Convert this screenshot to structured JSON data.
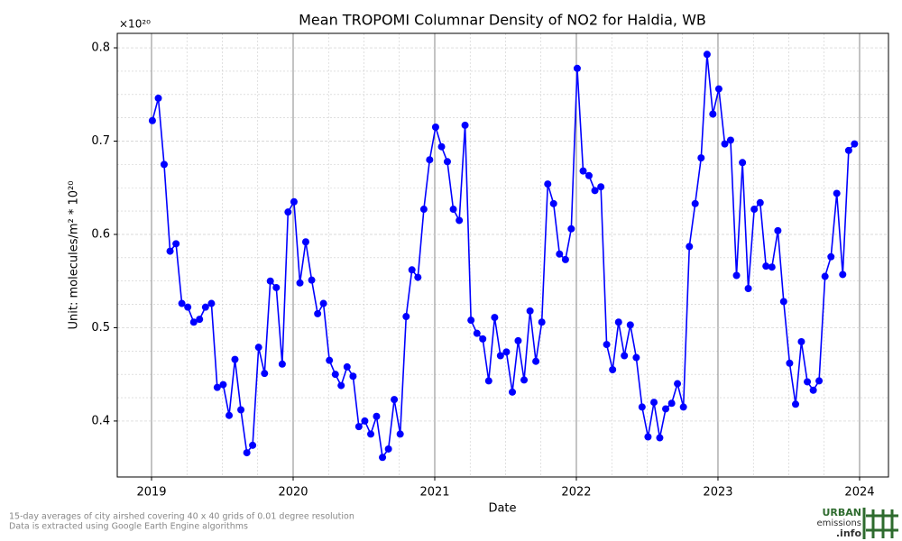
{
  "chart_data": {
    "type": "line",
    "title": "Mean TROPOMI Columnar Density of NO2 for Haldia, WB",
    "offset_label": "×10²⁰",
    "xlabel": "Date",
    "ylabel": "Unit: molecules/m² * 10²⁰",
    "footnote": [
      "15-day averages of city airshed covering 40 x 40 grids of 0.01 degree resolution",
      "Data is extracted using Google Earth Engine algorithms"
    ],
    "logo": [
      "URBAN",
      "emissions",
      ".info"
    ],
    "grid": true,
    "xlim": [
      2018.758,
      2024.204
    ],
    "ylim": [
      0.34,
      0.8155
    ],
    "xticks": [
      2019,
      2020,
      2021,
      2022,
      2023,
      2024
    ],
    "yticks": [
      0.4,
      0.5,
      0.6,
      0.7,
      0.8
    ],
    "x": [
      2019.006,
      2019.048,
      2019.089,
      2019.131,
      2019.173,
      2019.214,
      2019.256,
      2019.298,
      2019.339,
      2019.381,
      2019.423,
      2019.464,
      2019.506,
      2019.548,
      2019.589,
      2019.631,
      2019.673,
      2019.714,
      2019.756,
      2019.798,
      2019.839,
      2019.881,
      2019.923,
      2019.964,
      2020.006,
      2020.048,
      2020.089,
      2020.131,
      2020.173,
      2020.214,
      2020.256,
      2020.298,
      2020.339,
      2020.381,
      2020.423,
      2020.464,
      2020.506,
      2020.548,
      2020.589,
      2020.631,
      2020.673,
      2020.714,
      2020.756,
      2020.798,
      2020.839,
      2020.881,
      2020.923,
      2020.964,
      2021.006,
      2021.048,
      2021.089,
      2021.131,
      2021.173,
      2021.214,
      2021.256,
      2021.298,
      2021.339,
      2021.381,
      2021.423,
      2021.464,
      2021.506,
      2021.548,
      2021.589,
      2021.631,
      2021.673,
      2021.714,
      2021.756,
      2021.798,
      2021.839,
      2021.881,
      2021.923,
      2021.964,
      2022.006,
      2022.048,
      2022.089,
      2022.131,
      2022.173,
      2022.214,
      2022.256,
      2022.298,
      2022.339,
      2022.381,
      2022.423,
      2022.464,
      2022.506,
      2022.548,
      2022.589,
      2022.631,
      2022.673,
      2022.714,
      2022.756,
      2022.798,
      2022.839,
      2022.881,
      2022.923,
      2022.964,
      2023.006,
      2023.048,
      2023.089,
      2023.131,
      2023.173,
      2023.214,
      2023.256,
      2023.298,
      2023.339,
      2023.381,
      2023.423,
      2023.464,
      2023.506,
      2023.548,
      2023.589,
      2023.631,
      2023.673,
      2023.714,
      2023.756,
      2023.798,
      2023.839,
      2023.881,
      2023.923,
      2023.964
    ],
    "series": [
      {
        "color": "#0000ff",
        "values": [
          0.722,
          0.746,
          0.675,
          0.582,
          0.59,
          0.526,
          0.522,
          0.506,
          0.509,
          0.522,
          0.526,
          0.436,
          0.439,
          0.406,
          0.466,
          0.412,
          0.366,
          0.374,
          0.479,
          0.451,
          0.55,
          0.543,
          0.461,
          0.624,
          0.635,
          0.548,
          0.592,
          0.551,
          0.515,
          0.526,
          0.465,
          0.45,
          0.438,
          0.458,
          0.448,
          0.394,
          0.4,
          0.386,
          0.405,
          0.361,
          0.37,
          0.423,
          0.386,
          0.512,
          0.562,
          0.554,
          0.627,
          0.68,
          0.715,
          0.694,
          0.678,
          0.627,
          0.615,
          0.717,
          0.508,
          0.494,
          0.488,
          0.443,
          0.511,
          0.47,
          0.474,
          0.431,
          0.486,
          0.444,
          0.518,
          0.464,
          0.506,
          0.654,
          0.633,
          0.579,
          0.573,
          0.606,
          0.778,
          0.668,
          0.663,
          0.647,
          0.651,
          0.482,
          0.455,
          0.506,
          0.47,
          0.503,
          0.468,
          0.415,
          0.383,
          0.42,
          0.382,
          0.413,
          0.419,
          0.44,
          0.415,
          0.587,
          0.633,
          0.682,
          0.793,
          0.729,
          0.756,
          0.697,
          0.701,
          0.556,
          0.677,
          0.542,
          0.627,
          0.634,
          0.566,
          0.565,
          0.604,
          0.528,
          0.462,
          0.418,
          0.485,
          0.442,
          0.433,
          0.443,
          0.555,
          0.576,
          0.644,
          0.557,
          0.69,
          0.697
        ]
      }
    ]
  }
}
